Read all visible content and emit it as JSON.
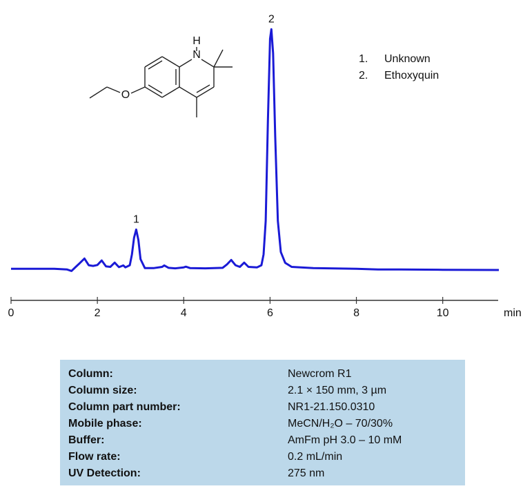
{
  "chart_data": {
    "type": "line",
    "x": [
      0,
      0.5,
      1.0,
      1.3,
      1.4,
      1.5,
      1.6,
      1.7,
      1.8,
      1.9,
      2.0,
      2.1,
      2.2,
      2.3,
      2.4,
      2.5,
      2.6,
      2.65,
      2.75,
      2.8,
      2.85,
      2.9,
      2.95,
      3.0,
      3.1,
      3.3,
      3.5,
      3.55,
      3.65,
      3.8,
      4.0,
      4.05,
      4.15,
      4.5,
      4.9,
      5.0,
      5.1,
      5.2,
      5.3,
      5.4,
      5.5,
      5.7,
      5.8,
      5.85,
      5.9,
      5.95,
      6.0,
      6.03,
      6.07,
      6.12,
      6.18,
      6.25,
      6.35,
      6.5,
      7.0,
      8.0,
      8.5,
      9.0,
      10.0,
      11.3
    ],
    "series": [
      {
        "color": "#1a1ad6",
        "values": [
          0,
          0,
          0,
          -0.3,
          -0.9,
          0.8,
          2.5,
          4.3,
          1.5,
          1.2,
          1.6,
          3.5,
          1.0,
          0.8,
          2.6,
          0.7,
          1.4,
          0.6,
          1.5,
          6,
          13,
          16.4,
          12,
          4,
          0.3,
          0.3,
          0.8,
          1.4,
          0.4,
          0.2,
          0.6,
          0.9,
          0.3,
          0.2,
          0.4,
          1.8,
          3.7,
          1.5,
          0.8,
          2.6,
          0.8,
          0.6,
          1.5,
          6,
          20,
          62,
          96,
          100,
          90,
          55,
          20,
          7,
          2.5,
          0.8,
          0.3,
          0,
          -0.3,
          -0.3,
          -0.4,
          -0.5
        ]
      }
    ],
    "xlim": [
      0,
      11.3
    ],
    "xticks": [
      0,
      2,
      4,
      6,
      8,
      10
    ],
    "x_label": "min",
    "ylim": [
      -10,
      105
    ],
    "annotations": [
      {
        "text": "1",
        "x": 2.9,
        "y": 16.4
      },
      {
        "text": "2",
        "x": 6.03,
        "y": 100
      }
    ],
    "legend_items": [
      {
        "number": "1.",
        "label": "Unknown"
      },
      {
        "number": "2.",
        "label": "Ethoxyquin"
      }
    ]
  },
  "structure": {
    "atoms": [
      "H",
      "N",
      "O"
    ]
  },
  "info_table": {
    "rows": [
      [
        "Column:",
        "Newcrom  R1"
      ],
      [
        "Column size:",
        "2.1 × 150 mm, 3 µm"
      ],
      [
        "Column part number:",
        "NR1-21.150.0310"
      ],
      [
        "Mobile phase:",
        "MeCN/H₂O – 70/30%"
      ],
      [
        "Buffer:",
        "AmFm pH 3.0 – 10 mM"
      ],
      [
        "Flow rate:",
        "0.2 mL/min"
      ],
      [
        "UV Detection:",
        "275 nm"
      ]
    ]
  }
}
